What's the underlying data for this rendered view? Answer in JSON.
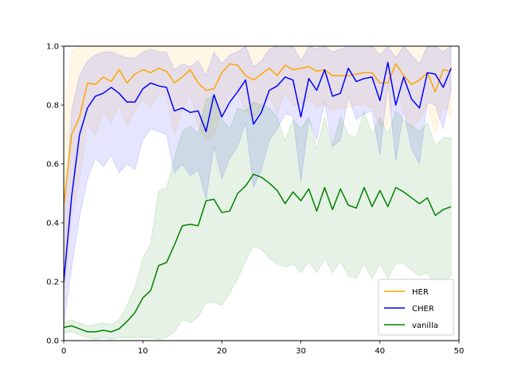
{
  "chart_data": {
    "type": "line",
    "title": "",
    "xlabel": "",
    "ylabel": "",
    "xlim": [
      0,
      50
    ],
    "ylim": [
      0,
      1
    ],
    "xticks": [
      0,
      10,
      20,
      30,
      40,
      50
    ],
    "yticks": [
      0.0,
      0.2,
      0.4,
      0.6,
      0.8,
      1.0
    ],
    "xtick_labels": [
      "0",
      "10",
      "20",
      "30",
      "40",
      "50"
    ],
    "ytick_labels": [
      "0.0",
      "0.2",
      "0.4",
      "0.6",
      "0.8",
      "1.0"
    ],
    "grid": false,
    "legend_position": "lower-right",
    "x": [
      0,
      1,
      2,
      3,
      4,
      5,
      6,
      7,
      8,
      9,
      10,
      11,
      12,
      13,
      14,
      15,
      16,
      17,
      18,
      19,
      20,
      21,
      22,
      23,
      24,
      25,
      26,
      27,
      28,
      29,
      30,
      31,
      32,
      33,
      34,
      35,
      36,
      37,
      38,
      39,
      40,
      41,
      42,
      43,
      44,
      45,
      46,
      47,
      48,
      49
    ],
    "series": [
      {
        "name": "HER",
        "color": "#ffa500",
        "values": [
          0.46,
          0.7,
          0.76,
          0.875,
          0.87,
          0.895,
          0.88,
          0.92,
          0.875,
          0.905,
          0.92,
          0.91,
          0.925,
          0.915,
          0.875,
          0.895,
          0.92,
          0.875,
          0.85,
          0.855,
          0.91,
          0.94,
          0.935,
          0.9,
          0.885,
          0.905,
          0.925,
          0.9,
          0.935,
          0.92,
          0.925,
          0.93,
          0.915,
          0.92,
          0.9,
          0.9,
          0.9,
          0.905,
          0.91,
          0.91,
          0.875,
          0.875,
          0.94,
          0.9,
          0.87,
          0.885,
          0.91,
          0.845,
          0.92,
          0.915
        ],
        "upper": [
          0.75,
          0.98,
          1.0,
          1.0,
          1.0,
          1.0,
          1.0,
          1.0,
          1.0,
          1.0,
          1.0,
          1.0,
          1.0,
          1.0,
          1.0,
          1.0,
          1.0,
          1.0,
          1.0,
          1.0,
          1.0,
          1.0,
          1.0,
          1.0,
          1.0,
          1.0,
          1.0,
          1.0,
          1.0,
          1.0,
          1.0,
          1.0,
          1.0,
          1.0,
          1.0,
          1.0,
          1.0,
          1.0,
          1.0,
          1.0,
          1.0,
          1.0,
          1.0,
          1.0,
          1.0,
          1.0,
          1.0,
          1.0,
          1.0,
          1.0
        ],
        "lower": [
          0.15,
          0.42,
          0.55,
          0.74,
          0.7,
          0.78,
          0.74,
          0.8,
          0.73,
          0.78,
          0.82,
          0.79,
          0.84,
          0.83,
          0.7,
          0.78,
          0.84,
          0.73,
          0.68,
          0.7,
          0.78,
          0.84,
          0.84,
          0.78,
          0.76,
          0.78,
          0.83,
          0.77,
          0.84,
          0.8,
          0.8,
          0.82,
          0.79,
          0.8,
          0.78,
          0.79,
          0.79,
          0.8,
          0.8,
          0.79,
          0.73,
          0.73,
          0.86,
          0.78,
          0.72,
          0.75,
          0.8,
          0.7,
          0.8,
          0.76
        ]
      },
      {
        "name": "CHER",
        "color": "#0000ff",
        "values": [
          0.2,
          0.49,
          0.7,
          0.79,
          0.83,
          0.84,
          0.86,
          0.84,
          0.81,
          0.81,
          0.855,
          0.875,
          0.865,
          0.86,
          0.78,
          0.79,
          0.775,
          0.78,
          0.71,
          0.835,
          0.76,
          0.81,
          0.845,
          0.885,
          0.735,
          0.775,
          0.85,
          0.865,
          0.895,
          0.885,
          0.76,
          0.89,
          0.85,
          0.92,
          0.83,
          0.84,
          0.925,
          0.88,
          0.89,
          0.895,
          0.815,
          0.945,
          0.8,
          0.895,
          0.82,
          0.79,
          0.91,
          0.905,
          0.86,
          0.925
        ],
        "upper": [
          0.4,
          0.78,
          0.9,
          0.95,
          0.97,
          0.98,
          0.98,
          0.97,
          0.96,
          0.96,
          0.98,
          0.99,
          0.98,
          0.98,
          0.92,
          0.94,
          0.93,
          0.95,
          0.9,
          0.98,
          0.94,
          0.97,
          0.98,
          1.0,
          0.93,
          0.95,
          0.99,
          1.0,
          1.0,
          1.0,
          0.95,
          1.0,
          0.99,
          1.0,
          0.98,
          0.99,
          1.0,
          1.0,
          1.0,
          1.0,
          0.97,
          1.0,
          0.96,
          1.0,
          0.97,
          0.94,
          1.0,
          1.0,
          0.98,
          1.0
        ],
        "lower": [
          0.05,
          0.25,
          0.42,
          0.55,
          0.62,
          0.59,
          0.63,
          0.57,
          0.6,
          0.58,
          0.68,
          0.72,
          0.71,
          0.7,
          0.57,
          0.6,
          0.56,
          0.58,
          0.48,
          0.66,
          0.55,
          0.62,
          0.66,
          0.74,
          0.52,
          0.58,
          0.68,
          0.72,
          0.77,
          0.76,
          0.54,
          0.75,
          0.68,
          0.81,
          0.66,
          0.68,
          0.83,
          0.75,
          0.77,
          0.78,
          0.63,
          0.87,
          0.61,
          0.78,
          0.65,
          0.6,
          0.81,
          0.8,
          0.72,
          0.85
        ]
      },
      {
        "name": "vanilla",
        "color": "#008000",
        "values": [
          0.045,
          0.05,
          0.04,
          0.03,
          0.03,
          0.035,
          0.03,
          0.04,
          0.065,
          0.095,
          0.145,
          0.17,
          0.255,
          0.265,
          0.325,
          0.39,
          0.395,
          0.39,
          0.475,
          0.48,
          0.435,
          0.44,
          0.5,
          0.525,
          0.565,
          0.555,
          0.535,
          0.51,
          0.465,
          0.505,
          0.475,
          0.515,
          0.44,
          0.52,
          0.445,
          0.515,
          0.46,
          0.45,
          0.52,
          0.455,
          0.51,
          0.455,
          0.52,
          0.505,
          0.485,
          0.465,
          0.485,
          0.425,
          0.445,
          0.455
        ],
        "upper": [
          0.065,
          0.07,
          0.06,
          0.05,
          0.055,
          0.06,
          0.055,
          0.07,
          0.12,
          0.18,
          0.28,
          0.33,
          0.51,
          0.52,
          0.62,
          0.71,
          0.73,
          0.7,
          0.82,
          0.83,
          0.75,
          0.72,
          0.79,
          0.78,
          0.81,
          0.8,
          0.79,
          0.76,
          0.68,
          0.75,
          0.72,
          0.76,
          0.65,
          0.76,
          0.66,
          0.76,
          0.7,
          0.69,
          0.78,
          0.7,
          0.76,
          0.7,
          0.78,
          0.75,
          0.73,
          0.71,
          0.74,
          0.66,
          0.69,
          0.69
        ],
        "lower": [
          0.025,
          0.03,
          0.02,
          0.01,
          0.005,
          0.01,
          0.005,
          0.01,
          0.01,
          0.01,
          0.01,
          0.01,
          0.005,
          0.01,
          0.03,
          0.07,
          0.06,
          0.08,
          0.13,
          0.13,
          0.12,
          0.16,
          0.21,
          0.27,
          0.32,
          0.31,
          0.28,
          0.26,
          0.25,
          0.26,
          0.23,
          0.27,
          0.23,
          0.28,
          0.23,
          0.27,
          0.22,
          0.21,
          0.26,
          0.21,
          0.26,
          0.21,
          0.26,
          0.26,
          0.24,
          0.22,
          0.23,
          0.19,
          0.2,
          0.22
        ]
      }
    ]
  }
}
